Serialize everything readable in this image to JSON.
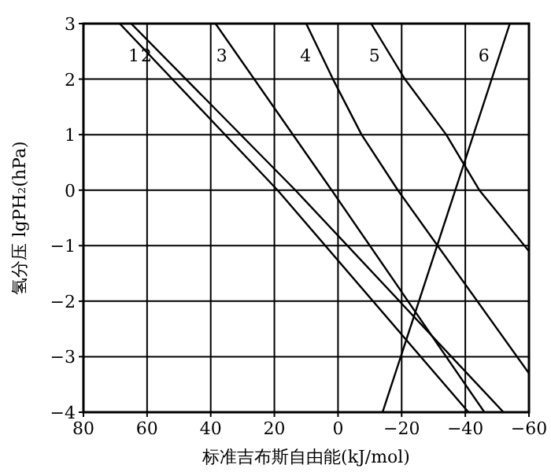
{
  "chart_data": {
    "type": "line",
    "xlabel": "标准吉布斯自由能(kJ/mol)",
    "ylabel": "氢分压 lgPH₂(hPa)",
    "xlim": [
      80,
      -60
    ],
    "ylim": [
      -4,
      3
    ],
    "xticks": [
      80,
      60,
      40,
      20,
      0,
      {
        "value": -20,
        "label": "−20"
      },
      {
        "value": -40,
        "label": "−40"
      },
      {
        "value": -60,
        "label": "−60"
      }
    ],
    "yticks": [
      {
        "value": -4,
        "label": "−4"
      },
      {
        "value": -3,
        "label": "−3"
      },
      {
        "value": -2,
        "label": "−2"
      },
      {
        "value": -1,
        "label": "−1"
      },
      0,
      1,
      2,
      3
    ],
    "grid": true,
    "marker": "none",
    "line_style": "solid",
    "series": [
      {
        "name": "1",
        "color": "#000000",
        "x": [
          68.6,
          19,
          -41
        ],
        "values": [
          3,
          0,
          -4
        ]
      },
      {
        "name": "2",
        "color": "#000000",
        "x": [
          65,
          13.4,
          -52
        ],
        "values": [
          3,
          0,
          -4
        ]
      },
      {
        "name": "3",
        "color": "#000000",
        "x": [
          38.5,
          2,
          -46
        ],
        "values": [
          3,
          0,
          -4
        ]
      },
      {
        "name": "4",
        "color": "#000000",
        "x": [
          10,
          1.6,
          -7.4,
          -18.8,
          -60
        ],
        "values": [
          3,
          2,
          1,
          0,
          -3.3
        ]
      },
      {
        "name": "5",
        "color": "#000000",
        "x": [
          -10.4,
          -21,
          -34,
          -44.4,
          -60
        ],
        "values": [
          3,
          2,
          1,
          0,
          -1.1
        ]
      },
      {
        "name": "6",
        "color": "#000000",
        "x": [
          -54,
          -14
        ],
        "values": [
          3,
          -4
        ]
      }
    ]
  }
}
